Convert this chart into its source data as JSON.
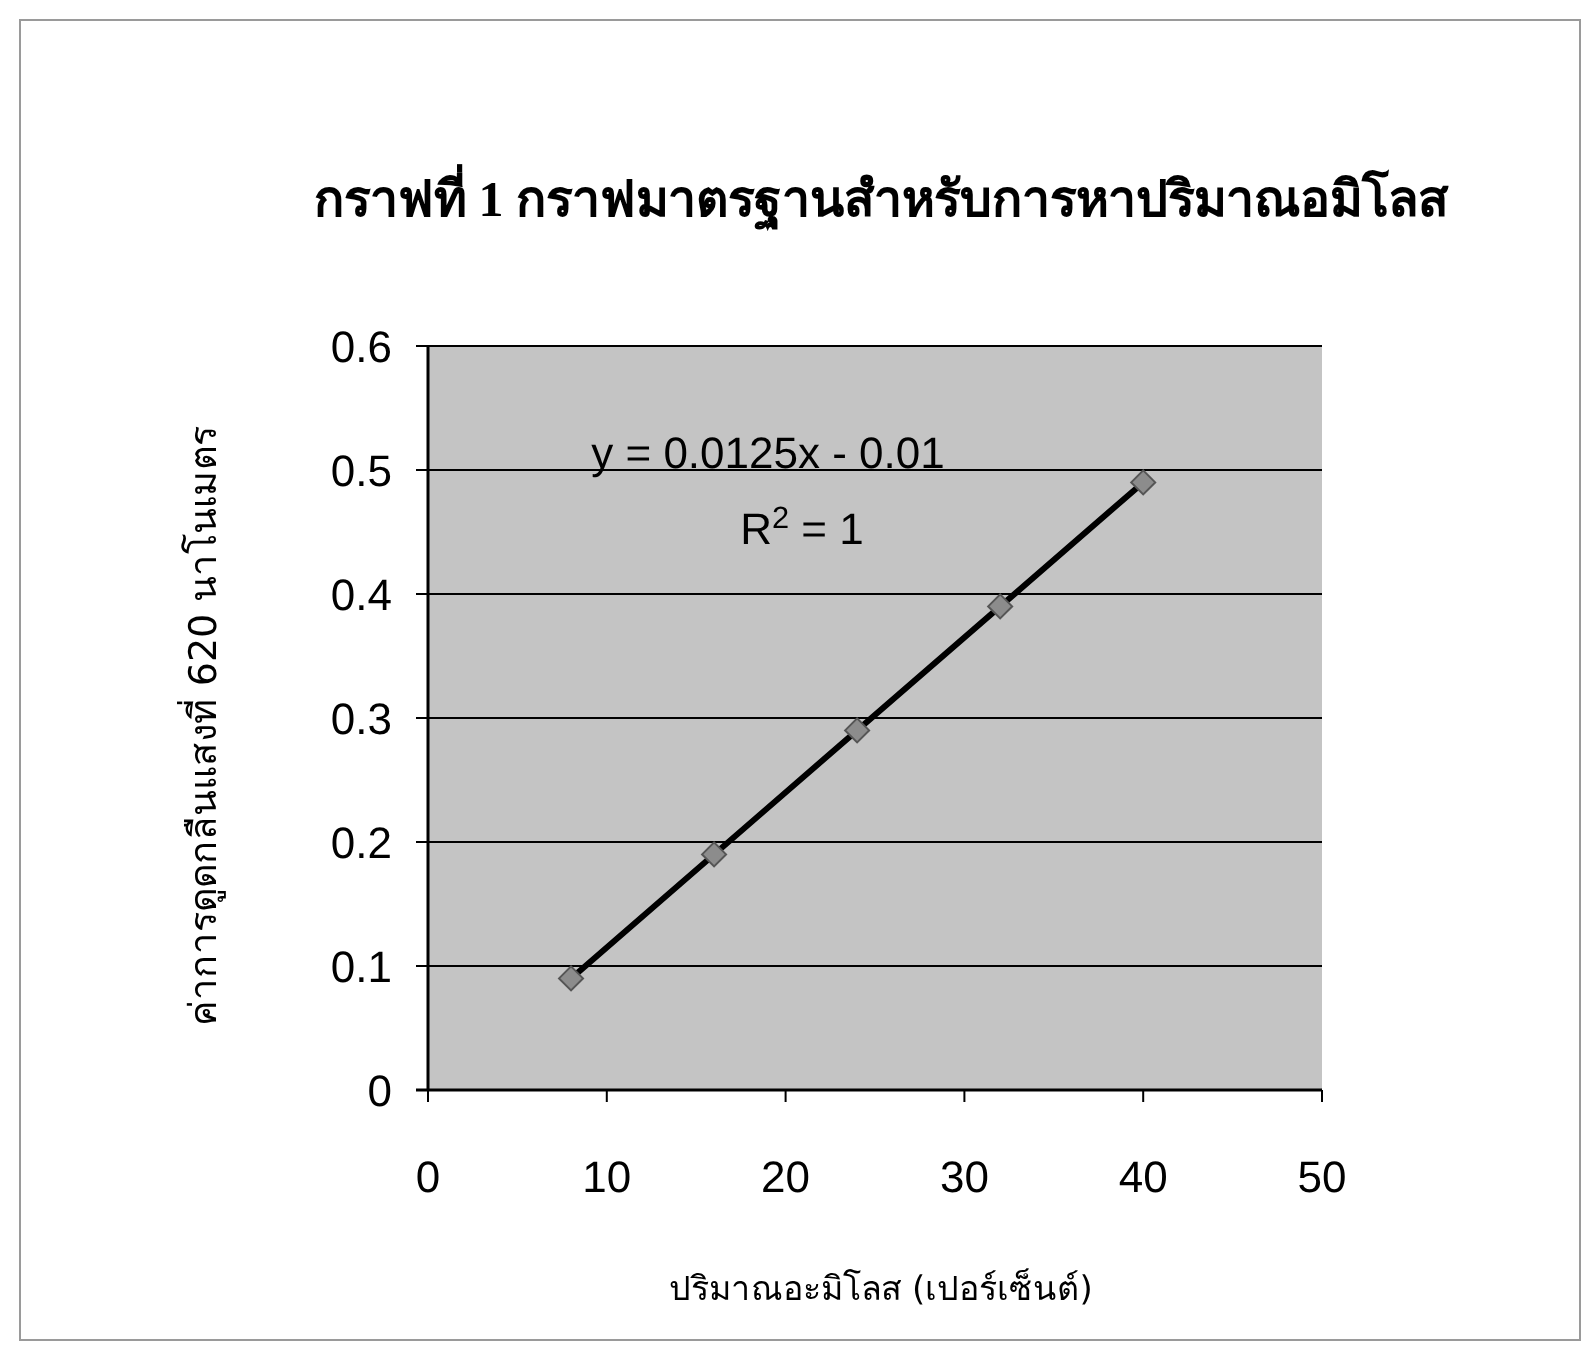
{
  "chart_data": {
    "type": "scatter",
    "title": "กราฟที่ 1 กราฟมาตรฐานสำหรับการหาปริมาณอมิโลส",
    "xlabel": "ปริมาณอะมิโลส (เปอร์เซ็นต์)",
    "ylabel": "ค่าการดูดกลืนแสงที่ 620 นาโนเมตร",
    "annotations": [
      "y = 0.0125x - 0.01",
      "R$^{2}$ = 1"
    ],
    "xlim": [
      0,
      50
    ],
    "xticks": [
      0,
      10,
      20,
      30,
      40,
      50
    ],
    "ylim": [
      0,
      0.6
    ],
    "yticks": [
      0,
      0.1,
      0.2,
      0.3,
      0.4,
      0.5,
      0.6
    ],
    "grid": "y",
    "series": [
      {
        "type": "line",
        "x": [
          8,
          40
        ],
        "values": [
          0.09,
          0.49
        ],
        "color": "#000000",
        "line_style": "solid"
      },
      {
        "x": [
          8,
          16,
          24,
          32,
          40
        ],
        "values": [
          0.09,
          0.19,
          0.29,
          0.39,
          0.49
        ],
        "color": "#8c8c8c",
        "marker": "diamond"
      }
    ]
  }
}
